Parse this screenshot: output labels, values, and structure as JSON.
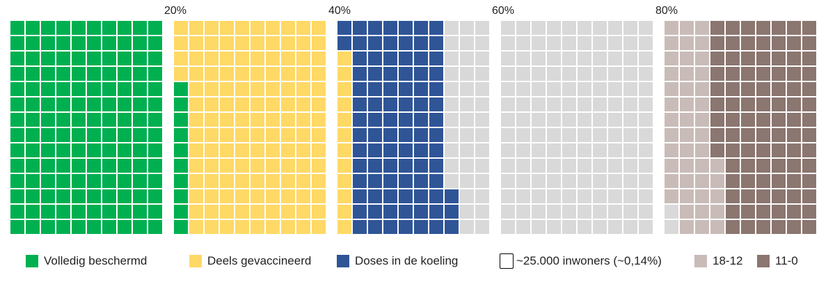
{
  "chart_data": {
    "type": "waffle",
    "axis_ticks": [
      "20%",
      "40%",
      "60%",
      "80%"
    ],
    "unit_label": "~25.000 inwoners (~0,14%)",
    "grid": {
      "blocks": 5,
      "columns_per_block": 10,
      "rows": 14
    },
    "categories": [
      {
        "key": "volledig",
        "name": "Volledig beschermd",
        "color": "#00b050",
        "units": 150
      },
      {
        "key": "deels",
        "name": "Deels gevaccineerd",
        "color": "#ffd966",
        "units": 142
      },
      {
        "key": "koeling",
        "name": "Doses in de koeling",
        "color": "#2f5597",
        "units": 89
      },
      {
        "key": "rest",
        "name": "",
        "color": "#d9d9d9",
        "units": 181
      },
      {
        "key": "age18_12",
        "name": "18-12",
        "color": "#c9bcb8",
        "units": 45
      },
      {
        "key": "age11_0",
        "name": "11-0",
        "color": "#8b7670",
        "units": 93
      }
    ]
  },
  "legend": [
    {
      "key": "volledig",
      "label": "Volledig beschermd",
      "color": "#00b050"
    },
    {
      "key": "deels",
      "label": "Deels gevaccineerd",
      "color": "#ffd966"
    },
    {
      "key": "koeling",
      "label": "Doses in de koeling",
      "color": "#2f5597"
    },
    {
      "key": "unit",
      "label": "~25.000 inwoners (~0,14%)",
      "color": "outline"
    },
    {
      "key": "age18_12",
      "label": "18-12",
      "color": "#c9bcb8"
    },
    {
      "key": "age11_0",
      "label": "11-0",
      "color": "#8b7670"
    }
  ]
}
